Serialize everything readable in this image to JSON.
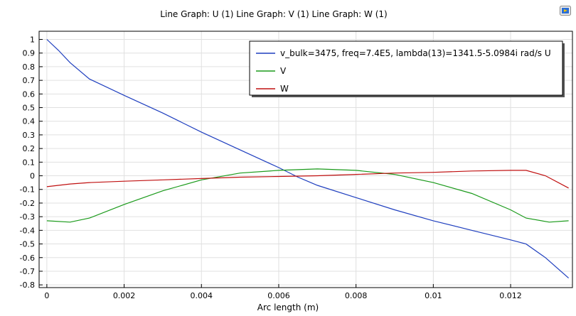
{
  "plot_title": "Line Graph: U (1)  Line Graph: V (1)  Line Graph: W (1)",
  "toolbar": {
    "export_icon": "image-export-icon"
  },
  "colors": {
    "U": "#1f3fbf",
    "V": "#1a9a1a",
    "W": "#c01010",
    "grid": "#e0e0e0",
    "axis": "#000000"
  },
  "chart_data": {
    "type": "line",
    "title": "Line Graph: U (1)  Line Graph: V (1)  Line Graph: W (1)",
    "xlabel": "Arc length (m)",
    "ylabel": "",
    "xlim": [
      -0.0002,
      0.0136
    ],
    "ylim": [
      -0.82,
      1.06
    ],
    "xticks": [
      0,
      0.002,
      0.004,
      0.006,
      0.008,
      0.01,
      0.012
    ],
    "xtick_labels": [
      "0",
      "0.002",
      "0.004",
      "0.006",
      "0.008",
      "0.01",
      "0.012"
    ],
    "yticks": [
      1,
      0.9,
      0.8,
      0.7,
      0.6,
      0.5,
      0.4,
      0.3,
      0.2,
      0.1,
      0,
      -0.1,
      -0.2,
      -0.3,
      -0.4,
      -0.5,
      -0.6,
      -0.7,
      -0.8
    ],
    "ytick_labels": [
      "1",
      "0.9",
      "0.8",
      "0.7",
      "0.6",
      "0.5",
      "0.4",
      "0.3",
      "0.2",
      "0.1",
      "0",
      "-0.1",
      "-0.2",
      "-0.3",
      "-0.4",
      "-0.5",
      "-0.6",
      "-0.7",
      "-0.8"
    ],
    "grid": true,
    "legend_position": "top-right",
    "series": [
      {
        "key": "U",
        "name": "v_bulk=3475, freq=7.4E5, lambda(13)=1341.5-5.0984i rad/s U",
        "x": [
          0,
          0.0003,
          0.0006,
          0.0011,
          0.002,
          0.003,
          0.004,
          0.005,
          0.006,
          0.0065,
          0.007,
          0.008,
          0.009,
          0.01,
          0.011,
          0.012,
          0.0124,
          0.0129,
          0.0135
        ],
        "y": [
          1.0,
          0.92,
          0.83,
          0.71,
          0.59,
          0.46,
          0.32,
          0.19,
          0.06,
          -0.01,
          -0.07,
          -0.16,
          -0.25,
          -0.33,
          -0.4,
          -0.47,
          -0.5,
          -0.6,
          -0.75
        ]
      },
      {
        "key": "V",
        "name": "V",
        "x": [
          0,
          0.0006,
          0.0011,
          0.002,
          0.003,
          0.004,
          0.005,
          0.006,
          0.007,
          0.008,
          0.009,
          0.01,
          0.011,
          0.012,
          0.0124,
          0.013,
          0.0135
        ],
        "y": [
          -0.33,
          -0.34,
          -0.31,
          -0.21,
          -0.11,
          -0.03,
          0.02,
          0.04,
          0.05,
          0.04,
          0.01,
          -0.05,
          -0.13,
          -0.25,
          -0.31,
          -0.34,
          -0.33
        ]
      },
      {
        "key": "W",
        "name": "W",
        "x": [
          0,
          0.0006,
          0.0011,
          0.002,
          0.003,
          0.004,
          0.005,
          0.006,
          0.007,
          0.008,
          0.009,
          0.01,
          0.011,
          0.012,
          0.0124,
          0.0129,
          0.0135
        ],
        "y": [
          -0.08,
          -0.06,
          -0.05,
          -0.04,
          -0.03,
          -0.02,
          -0.01,
          -0.005,
          0.0,
          0.01,
          0.02,
          0.025,
          0.035,
          0.04,
          0.04,
          0.0,
          -0.09
        ]
      }
    ]
  }
}
